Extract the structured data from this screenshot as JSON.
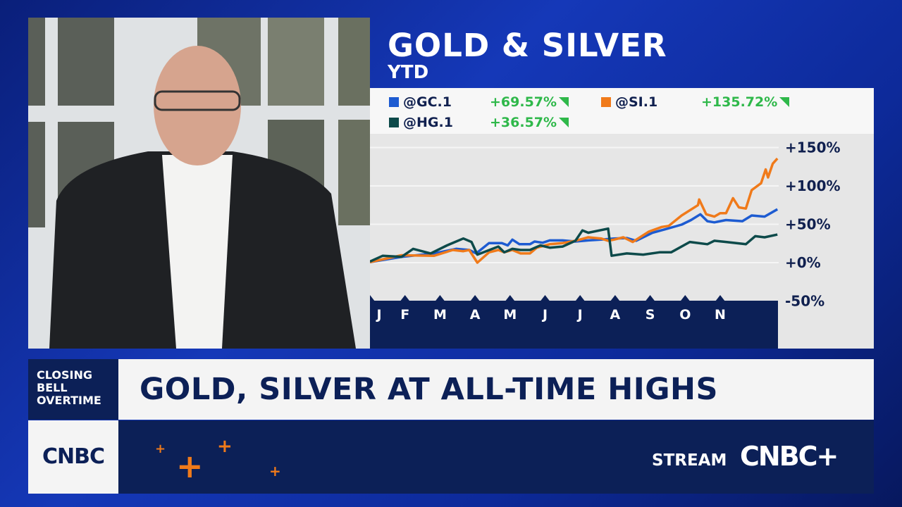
{
  "header": {
    "title": "GOLD & SILVER",
    "subtitle": "YTD"
  },
  "legend": [
    {
      "symbol": "@GC.1",
      "change": "+69.57%",
      "color": "#1d5bd1"
    },
    {
      "symbol": "@SI.1",
      "change": "+135.72%",
      "color": "#f07a1a"
    },
    {
      "symbol": "@HG.1",
      "change": "+36.57%",
      "color": "#0d4a4a"
    }
  ],
  "chart_data": {
    "type": "line",
    "title": "GOLD & SILVER",
    "subtitle": "YTD",
    "x_ticks": [
      "J",
      "F",
      "M",
      "A",
      "M",
      "J",
      "J",
      "A",
      "S",
      "O",
      "N"
    ],
    "y_ticks": [
      "+150%",
      "+100%",
      "+50%",
      "+0%",
      "-50%"
    ],
    "ylim": [
      -50,
      150
    ],
    "grid": true,
    "legend_placement": "top",
    "series": [
      {
        "name": "@GC.1",
        "color": "#1d5bd1",
        "points": [
          [
            "01-01",
            0.6
          ],
          [
            "01-28",
            7.5
          ],
          [
            "02-26",
            12
          ],
          [
            "03-15",
            18
          ],
          [
            "03-26",
            16.5
          ],
          [
            "04-02",
            12
          ],
          [
            "04-13",
            25.5
          ],
          [
            "04-24",
            25.5
          ],
          [
            "04-29",
            22.5
          ],
          [
            "05-03",
            30
          ],
          [
            "05-09",
            24
          ],
          [
            "05-18",
            24
          ],
          [
            "05-22",
            27.5
          ],
          [
            "05-29",
            26
          ],
          [
            "06-05",
            29
          ],
          [
            "06-16",
            29
          ],
          [
            "06-27",
            27.5
          ],
          [
            "07-08",
            29
          ],
          [
            "07-19",
            30
          ],
          [
            "07-30",
            31.5
          ],
          [
            "08-11",
            32
          ],
          [
            "08-19",
            28.5
          ],
          [
            "09-03",
            39
          ],
          [
            "09-14",
            43.5
          ],
          [
            "09-28",
            49.5
          ],
          [
            "10-06",
            55.5
          ],
          [
            "10-14",
            63
          ],
          [
            "10-20",
            54
          ],
          [
            "10-26",
            52.5
          ],
          [
            "11-06",
            55.5
          ],
          [
            "11-20",
            54
          ],
          [
            "11-28",
            61.5
          ],
          [
            "12-09",
            60
          ],
          [
            "12-20",
            69.57
          ]
        ]
      },
      {
        "name": "@SI.1",
        "color": "#f07a1a",
        "points": [
          [
            "01-01",
            0.6
          ],
          [
            "01-28",
            9.6
          ],
          [
            "02-26",
            9
          ],
          [
            "03-12",
            16.5
          ],
          [
            "03-21",
            15
          ],
          [
            "03-26",
            16.5
          ],
          [
            "04-03",
            0
          ],
          [
            "04-13",
            13.5
          ],
          [
            "04-21",
            16.5
          ],
          [
            "04-26",
            13.5
          ],
          [
            "05-03",
            16.5
          ],
          [
            "05-10",
            12
          ],
          [
            "05-18",
            12
          ],
          [
            "05-24",
            19.5
          ],
          [
            "06-05",
            24
          ],
          [
            "06-16",
            25.5
          ],
          [
            "06-27",
            28.5
          ],
          [
            "07-08",
            33
          ],
          [
            "07-19",
            31.5
          ],
          [
            "07-25",
            28.5
          ],
          [
            "07-30",
            30
          ],
          [
            "08-08",
            33
          ],
          [
            "08-16",
            27
          ],
          [
            "08-30",
            40.5
          ],
          [
            "09-11",
            46.5
          ],
          [
            "09-17",
            48
          ],
          [
            "09-28",
            61.5
          ],
          [
            "10-12",
            75
          ],
          [
            "10-13",
            82.3
          ],
          [
            "10-19",
            63
          ],
          [
            "10-26",
            60
          ],
          [
            "11-01",
            64.5
          ],
          [
            "11-06",
            64.5
          ],
          [
            "11-12",
            84
          ],
          [
            "11-17",
            72
          ],
          [
            "11-23",
            70.5
          ],
          [
            "11-28",
            94.5
          ],
          [
            "12-06",
            103.5
          ],
          [
            "12-10",
            121.5
          ],
          [
            "12-12",
            111
          ],
          [
            "12-16",
            129
          ],
          [
            "12-20",
            135.72
          ]
        ]
      },
      {
        "name": "@HG.1",
        "color": "#0d4a4a",
        "points": [
          [
            "01-01",
            1.5
          ],
          [
            "01-12",
            9
          ],
          [
            "01-28",
            7.5
          ],
          [
            "02-08",
            18
          ],
          [
            "02-23",
            12
          ],
          [
            "03-07",
            22.5
          ],
          [
            "03-21",
            31.5
          ],
          [
            "03-28",
            27
          ],
          [
            "04-03",
            10.5
          ],
          [
            "04-21",
            21
          ],
          [
            "04-26",
            13.5
          ],
          [
            "05-03",
            18
          ],
          [
            "05-10",
            16.5
          ],
          [
            "05-18",
            16.5
          ],
          [
            "05-27",
            22.5
          ],
          [
            "06-05",
            19.5
          ],
          [
            "06-16",
            21
          ],
          [
            "06-27",
            28.5
          ],
          [
            "07-03",
            42
          ],
          [
            "07-08",
            39
          ],
          [
            "07-25",
            44.3
          ],
          [
            "07-28",
            9
          ],
          [
            "08-11",
            12
          ],
          [
            "08-25",
            10.5
          ],
          [
            "09-09",
            13.5
          ],
          [
            "09-19",
            13.5
          ],
          [
            "10-05",
            27
          ],
          [
            "10-20",
            24
          ],
          [
            "10-26",
            28.5
          ],
          [
            "11-06",
            27
          ],
          [
            "11-23",
            24
          ],
          [
            "12-01",
            34.5
          ],
          [
            "12-09",
            33
          ],
          [
            "12-20",
            36.57
          ]
        ]
      }
    ]
  },
  "lower_third": {
    "show": [
      "CLOSING",
      "BELL",
      "OVERTIME"
    ],
    "headline": "GOLD, SILVER AT ALL-TIME HIGHS",
    "network": "CNBC",
    "stream_label": "STREAM",
    "stream_brand": "CNBC+"
  }
}
